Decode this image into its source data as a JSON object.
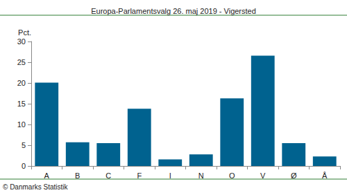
{
  "chart_data": {
    "type": "bar",
    "title": "Europa-Parlamentsvalg 26. maj 2019 - Vigersted",
    "y_label": "Pct.",
    "annotation": "© Danmarks Statistik",
    "categories": [
      "A",
      "B",
      "C",
      "F",
      "I",
      "N",
      "O",
      "V",
      "Ø",
      "Å"
    ],
    "values": [
      20.1,
      5.7,
      5.5,
      13.8,
      1.6,
      2.8,
      16.3,
      26.6,
      5.5,
      2.3
    ],
    "color": "#00628f",
    "ylim": [
      0,
      30
    ],
    "yticks": [
      0,
      5,
      10,
      15,
      20,
      25,
      30
    ],
    "grid": false
  }
}
